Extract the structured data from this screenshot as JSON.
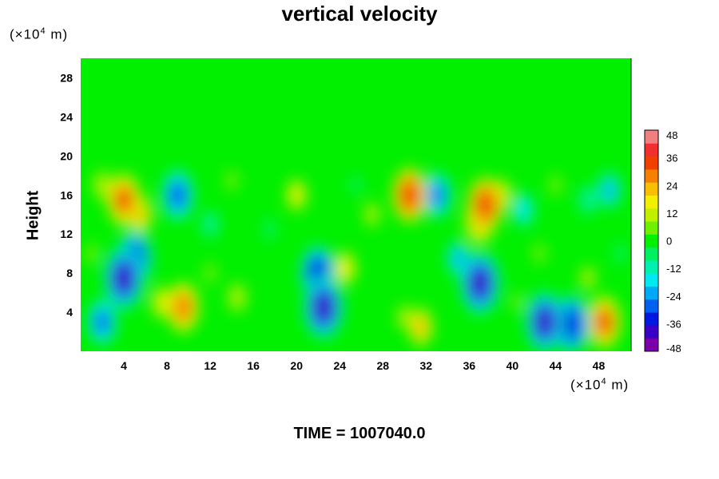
{
  "chart_data": {
    "type": "heatmap",
    "title": "vertical velocity",
    "ylabel": "Height",
    "xlabel": "",
    "x_unit": {
      "prefix": "(×10",
      "exp": "4",
      "suffix": " m)"
    },
    "y_unit": {
      "prefix": "(×10",
      "exp": "4",
      "suffix": " m)"
    },
    "xlim": [
      0,
      51
    ],
    "ylim": [
      0,
      30
    ],
    "x_ticks": [
      4,
      8,
      12,
      16,
      20,
      24,
      28,
      32,
      36,
      40,
      44,
      48
    ],
    "y_ticks": [
      4,
      8,
      12,
      16,
      20,
      24,
      28
    ],
    "colorbar": {
      "min": -48,
      "max": 48,
      "tick_values": [
        48,
        36,
        24,
        12,
        0,
        -12,
        -24,
        -36,
        -48
      ],
      "colors": [
        "#7a00a8",
        "#3a00c8",
        "#0018e0",
        "#0060f0",
        "#00a8f8",
        "#00e8f0",
        "#00f0b0",
        "#00f060",
        "#00f000",
        "#70f000",
        "#c0f000",
        "#f0f000",
        "#f8c000",
        "#f88000",
        "#f04000",
        "#f03030",
        "#f08080"
      ]
    },
    "background_value": 0,
    "features": [
      {
        "x": 9.5,
        "y": 4.5,
        "value": 30
      },
      {
        "x": 7.5,
        "y": 5.0,
        "value": 16
      },
      {
        "x": 14.5,
        "y": 5.5,
        "value": 14
      },
      {
        "x": 12.0,
        "y": 8.0,
        "value": 8
      },
      {
        "x": 4.0,
        "y": 7.5,
        "value": -40
      },
      {
        "x": 2.0,
        "y": 3.0,
        "value": -26
      },
      {
        "x": 5.0,
        "y": 9.5,
        "value": -34
      },
      {
        "x": 22.5,
        "y": 4.5,
        "value": -40
      },
      {
        "x": 22.0,
        "y": 8.0,
        "value": -34
      },
      {
        "x": 24.5,
        "y": 8.5,
        "value": 18
      },
      {
        "x": 31.5,
        "y": 2.5,
        "value": 22
      },
      {
        "x": 30.0,
        "y": 3.5,
        "value": 10
      },
      {
        "x": 37.0,
        "y": 7.0,
        "value": -40
      },
      {
        "x": 35.0,
        "y": 9.5,
        "value": -20
      },
      {
        "x": 43.0,
        "y": 3.0,
        "value": -38
      },
      {
        "x": 45.5,
        "y": 2.8,
        "value": -36
      },
      {
        "x": 48.5,
        "y": 3.0,
        "value": 32
      },
      {
        "x": 47.0,
        "y": 7.5,
        "value": 10
      },
      {
        "x": 40.5,
        "y": 5.0,
        "value": 6
      },
      {
        "x": 4.0,
        "y": 15.5,
        "value": 32
      },
      {
        "x": 5.5,
        "y": 14.0,
        "value": 22
      },
      {
        "x": 2.0,
        "y": 17.0,
        "value": 14
      },
      {
        "x": 9.0,
        "y": 16.0,
        "value": -30
      },
      {
        "x": 20.0,
        "y": 16.0,
        "value": 16
      },
      {
        "x": 30.5,
        "y": 16.0,
        "value": 34
      },
      {
        "x": 33.0,
        "y": 16.0,
        "value": -26
      },
      {
        "x": 37.5,
        "y": 15.0,
        "value": 34
      },
      {
        "x": 37.0,
        "y": 13.5,
        "value": 28
      },
      {
        "x": 39.0,
        "y": 16.0,
        "value": 16
      },
      {
        "x": 41.0,
        "y": 14.5,
        "value": -18
      },
      {
        "x": 47.0,
        "y": 15.5,
        "value": -14
      },
      {
        "x": 49.0,
        "y": 16.5,
        "value": -20
      },
      {
        "x": 12.0,
        "y": 13.0,
        "value": -12
      },
      {
        "x": 27.0,
        "y": 14.0,
        "value": 10
      },
      {
        "x": 14.0,
        "y": 17.5,
        "value": 8
      },
      {
        "x": 44.0,
        "y": 17.0,
        "value": 8
      },
      {
        "x": 17.5,
        "y": 12.5,
        "value": -8
      },
      {
        "x": 25.5,
        "y": 17.0,
        "value": -6
      },
      {
        "x": 42.5,
        "y": 10.0,
        "value": 8
      },
      {
        "x": 1.0,
        "y": 10.0,
        "value": 8
      },
      {
        "x": 50.0,
        "y": 10.0,
        "value": -8
      }
    ]
  },
  "footer": {
    "time_label": "TIME = 1007040.0"
  }
}
